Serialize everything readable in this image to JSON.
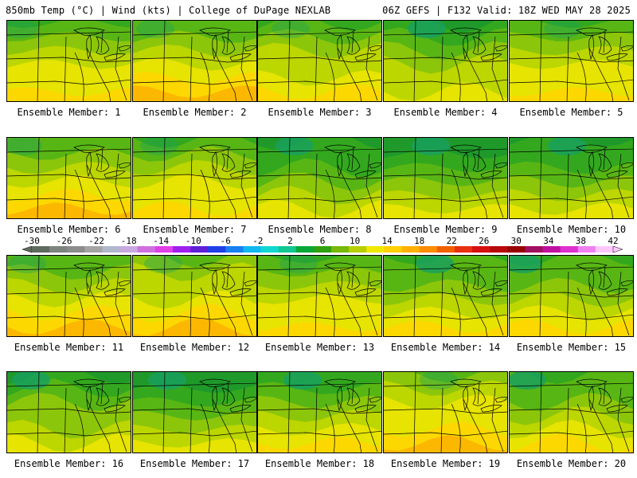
{
  "header": {
    "left": "850mb Temp (°C) | Wind (kts) | College of DuPage NEXLAB",
    "right": "06Z GEFS | F132 Valid: 18Z WED MAY 28 2025"
  },
  "members": [
    {
      "label": "Ensemble Member: 1",
      "warmth": 0.55
    },
    {
      "label": "Ensemble Member: 2",
      "warmth": 0.62
    },
    {
      "label": "Ensemble Member: 3",
      "warmth": 0.5
    },
    {
      "label": "Ensemble Member: 4",
      "warmth": 0.35
    },
    {
      "label": "Ensemble Member: 5",
      "warmth": 0.55
    },
    {
      "label": "Ensemble Member: 6",
      "warmth": 0.6
    },
    {
      "label": "Ensemble Member: 7",
      "warmth": 0.55
    },
    {
      "label": "Ensemble Member: 8",
      "warmth": 0.25
    },
    {
      "label": "Ensemble Member: 9",
      "warmth": 0.2
    },
    {
      "label": "Ensemble Member: 10",
      "warmth": 0.22
    },
    {
      "label": "Ensemble Member: 11",
      "warmth": 0.6
    },
    {
      "label": "Ensemble Member: 12",
      "warmth": 0.68
    },
    {
      "label": "Ensemble Member: 13",
      "warmth": 0.55
    },
    {
      "label": "Ensemble Member: 14",
      "warmth": 0.45
    },
    {
      "label": "Ensemble Member: 15",
      "warmth": 0.45
    },
    {
      "label": "Ensemble Member: 16",
      "warmth": 0.3
    },
    {
      "label": "Ensemble Member: 17",
      "warmth": 0.2
    },
    {
      "label": "Ensemble Member: 18",
      "warmth": 0.4
    },
    {
      "label": "Ensemble Member: 19",
      "warmth": 0.7
    },
    {
      "label": "Ensemble Member: 20",
      "warmth": 0.45
    }
  ],
  "colorbar": {
    "labels": [
      "-30",
      "-26",
      "-22",
      "-18",
      "-14",
      "-10",
      "-6",
      "-2",
      "2",
      "6",
      "10",
      "14",
      "18",
      "22",
      "26",
      "30",
      "34",
      "38",
      "42"
    ],
    "colors": [
      "#5f6b5f",
      "#7d837d",
      "#8c8c8c",
      "#a4a4a4",
      "#b0b8cc",
      "#c8a8e0",
      "#d070e0",
      "#e040e8",
      "#a020f0",
      "#6020d8",
      "#2040e8",
      "#1880f0",
      "#10b8f0",
      "#10d8d0",
      "#10c890",
      "#08a838",
      "#30a010",
      "#78b808",
      "#b8d000",
      "#f0e800",
      "#ffd000",
      "#ffb000",
      "#ff8c00",
      "#f06000",
      "#e83010",
      "#d81010",
      "#b80808",
      "#980000",
      "#a01060",
      "#c010a0",
      "#e030d0",
      "#f080f0",
      "#fcc8fc"
    ]
  }
}
